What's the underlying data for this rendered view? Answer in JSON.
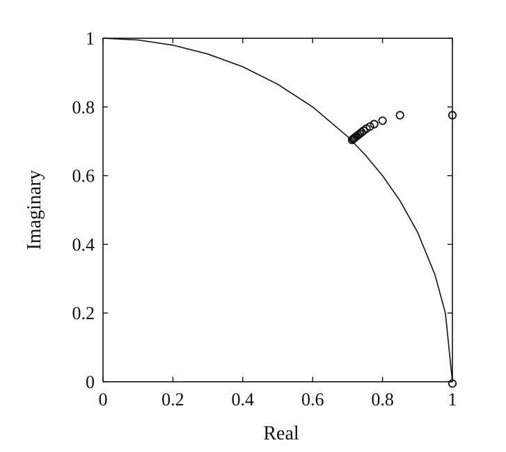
{
  "chart_data": {
    "type": "scatter",
    "xlabel": "Real",
    "ylabel": "Imaginary",
    "xlim": [
      0,
      1
    ],
    "ylim": [
      0,
      1
    ],
    "x_ticks": [
      "0",
      "0.2",
      "0.4",
      "0.6",
      "0.8",
      "1"
    ],
    "y_ticks": [
      "0",
      "0.2",
      "0.4",
      "0.6",
      "0.8",
      "1"
    ],
    "x_tick_values": [
      0,
      0.2,
      0.4,
      0.6,
      0.8,
      1
    ],
    "y_tick_values": [
      0,
      0.2,
      0.4,
      0.6,
      0.8,
      1
    ],
    "grid": false,
    "legend": "none",
    "series": [
      {
        "style": "line",
        "color": "#111111",
        "x": [
          0.0,
          0.1,
          0.2,
          0.3,
          0.4,
          0.5,
          0.6,
          0.7,
          0.75,
          0.8,
          0.85,
          0.9,
          0.95,
          0.98,
          1.0
        ],
        "y": [
          1.0,
          0.995,
          0.98,
          0.954,
          0.917,
          0.866,
          0.8,
          0.714,
          0.661,
          0.6,
          0.527,
          0.436,
          0.312,
          0.199,
          0.0
        ]
      },
      {
        "style": "markers",
        "marker": "open-circle",
        "color": "#111111",
        "x": [
          1.0,
          1.0,
          0.85,
          0.8,
          0.776,
          0.764,
          0.754,
          0.746,
          0.74,
          0.735,
          0.73,
          0.726,
          0.722,
          0.719,
          0.716,
          0.713
        ],
        "y": [
          0.776,
          -0.005,
          0.776,
          0.76,
          0.75,
          0.743,
          0.737,
          0.731,
          0.726,
          0.722,
          0.718,
          0.715,
          0.712,
          0.709,
          0.707,
          0.704
        ]
      }
    ]
  }
}
